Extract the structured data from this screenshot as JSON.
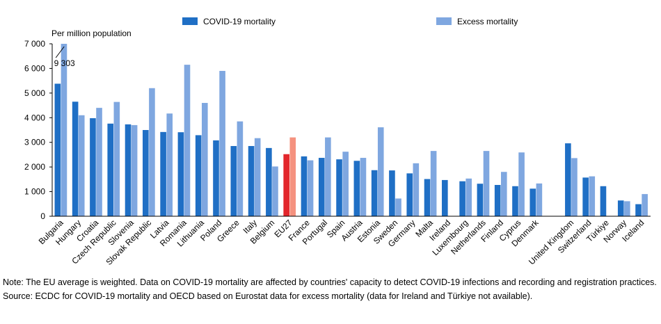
{
  "chart_data": {
    "type": "bar",
    "y_axis_label": "Per million population",
    "categories": [
      "Bulgaria",
      "Hungary",
      "Croatia",
      "Czech Republic",
      "Slovenia",
      "Slovak Republic",
      "Latvia",
      "Romania",
      "Lithuania",
      "Poland",
      "Greece",
      "Italy",
      "Belgium",
      "EU27",
      "France",
      "Portugal",
      "Spain",
      "Austria",
      "Estonia",
      "Sweden",
      "Germany",
      "Malta",
      "Ireland",
      "Luxembourg",
      "Netherlands",
      "Finland",
      "Cyprus",
      "Denmark",
      null,
      "United Kingdom",
      "Switzerland",
      "Türkiye",
      "Norway",
      "Iceland"
    ],
    "series": [
      {
        "name": "COVID-19 mortality",
        "color": "#1f6fc5",
        "values": [
          5380,
          4650,
          3980,
          3760,
          3730,
          3500,
          3420,
          3410,
          3290,
          3080,
          2850,
          2850,
          2770,
          2520,
          2430,
          2370,
          2310,
          2250,
          1870,
          1860,
          1740,
          1510,
          1470,
          1420,
          1320,
          1270,
          1220,
          1120,
          null,
          2960,
          1570,
          1220,
          640,
          490
        ]
      },
      {
        "name": "Excess mortality",
        "color": "#7fa7e0",
        "values": [
          9303,
          4100,
          4400,
          4640,
          3700,
          5200,
          4170,
          6150,
          4600,
          5900,
          3850,
          3170,
          2020,
          3200,
          2270,
          3200,
          2620,
          2370,
          3610,
          720,
          2150,
          2650,
          null,
          1530,
          2650,
          1800,
          2590,
          1330,
          null,
          2360,
          1620,
          null,
          610,
          900
        ],
        "value_labels": [
          "9 303",
          null,
          null,
          null,
          null,
          null,
          null,
          null,
          null,
          null,
          null,
          null,
          null,
          null,
          null,
          null,
          null,
          null,
          null,
          null,
          null,
          null,
          null,
          null,
          null,
          null,
          null,
          null,
          null,
          null,
          null,
          null,
          null,
          null
        ]
      }
    ],
    "highlight": {
      "category": "EU27",
      "colors": [
        "#e3262c",
        "#f5927f"
      ]
    },
    "ylim": [
      0,
      7000
    ],
    "yticks": [
      0,
      {
        "value": 1000,
        "label": "1 000"
      },
      {
        "value": 2000,
        "label": "2 000"
      },
      {
        "value": 3000,
        "label": "3 000"
      },
      {
        "value": 4000,
        "label": "4 000"
      },
      {
        "value": 5000,
        "label": "5 000"
      },
      {
        "value": 6000,
        "label": "6 000"
      },
      {
        "value": 7000,
        "label": "7 000"
      }
    ],
    "grid": false,
    "legend": "top",
    "note": "Note: The EU average is weighted. Data on COVID-19 mortality are affected by countries' capacity to detect COVID-19 infections and recording and registration practices.",
    "source": "Source: ECDC for COVID-19 mortality and OECD based on Eurostat data for excess mortality (data for Ireland and Türkiye not available)."
  }
}
